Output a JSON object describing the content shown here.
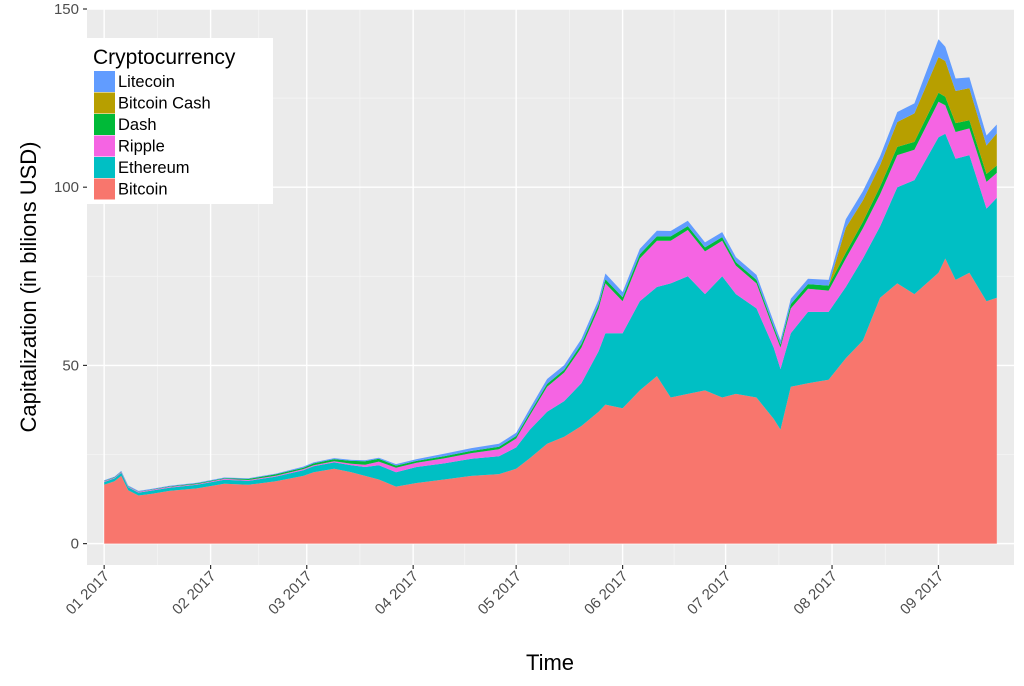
{
  "chart_data": {
    "type": "area",
    "stacked": true,
    "xlabel": "Time",
    "ylabel": "Capitalization (in bilions USD)",
    "ylim": [
      -6,
      150
    ],
    "y_ticks": [
      0,
      50,
      100,
      150
    ],
    "x_range": [
      "2016-12-27",
      "2017-09-23"
    ],
    "x_ticks": [
      {
        "date": "2017-01-01",
        "label": "01 2017"
      },
      {
        "date": "2017-02-01",
        "label": "02 2017"
      },
      {
        "date": "2017-03-01",
        "label": "03 2017"
      },
      {
        "date": "2017-04-01",
        "label": "04 2017"
      },
      {
        "date": "2017-05-01",
        "label": "05 2017"
      },
      {
        "date": "2017-06-01",
        "label": "06 2017"
      },
      {
        "date": "2017-07-01",
        "label": "07 2017"
      },
      {
        "date": "2017-08-01",
        "label": "08 2017"
      },
      {
        "date": "2017-09-01",
        "label": "09 2017"
      }
    ],
    "grid": true,
    "legend": {
      "title": "Cryptocurrency",
      "position": "top-left",
      "entries": [
        "Litecoin",
        "Bitcoin Cash",
        "Dash",
        "Ripple",
        "Ethereum",
        "Bitcoin"
      ]
    },
    "x": [
      "2017-01-01",
      "2017-01-04",
      "2017-01-06",
      "2017-01-08",
      "2017-01-11",
      "2017-01-15",
      "2017-01-20",
      "2017-01-28",
      "2017-02-05",
      "2017-02-12",
      "2017-02-20",
      "2017-02-28",
      "2017-03-03",
      "2017-03-09",
      "2017-03-14",
      "2017-03-18",
      "2017-03-22",
      "2017-03-27",
      "2017-04-02",
      "2017-04-10",
      "2017-04-18",
      "2017-04-26",
      "2017-05-01",
      "2017-05-05",
      "2017-05-10",
      "2017-05-15",
      "2017-05-20",
      "2017-05-25",
      "2017-05-27",
      "2017-06-01",
      "2017-06-06",
      "2017-06-11",
      "2017-06-15",
      "2017-06-20",
      "2017-06-25",
      "2017-06-30",
      "2017-07-04",
      "2017-07-10",
      "2017-07-15",
      "2017-07-17",
      "2017-07-20",
      "2017-07-25",
      "2017-07-31",
      "2017-08-05",
      "2017-08-10",
      "2017-08-15",
      "2017-08-20",
      "2017-08-25",
      "2017-09-01",
      "2017-09-03",
      "2017-09-06",
      "2017-09-10",
      "2017-09-15",
      "2017-09-18"
    ],
    "series": [
      {
        "name": "Bitcoin",
        "color": "#F8766D",
        "values": [
          16.5,
          17.5,
          19,
          15,
          13.5,
          14,
          14.8,
          15.5,
          16.8,
          16.5,
          17.5,
          19,
          20,
          21,
          20,
          19,
          18,
          16,
          17,
          18,
          19,
          19.5,
          21,
          24,
          28,
          30,
          33,
          37,
          39,
          38,
          43,
          47,
          41,
          42,
          43,
          41,
          42,
          41,
          35,
          32,
          44,
          45,
          46,
          52,
          57,
          69,
          73,
          70,
          76,
          80,
          74,
          76,
          68,
          69
        ]
      },
      {
        "name": "Ethereum",
        "color": "#00BFC4",
        "values": [
          0.8,
          0.8,
          0.9,
          0.8,
          0.8,
          0.9,
          0.9,
          1.0,
          1.1,
          1.1,
          1.3,
          1.6,
          1.7,
          1.8,
          2.0,
          2.5,
          4.0,
          4.0,
          4.5,
          4.5,
          4.8,
          5.0,
          6.0,
          8.0,
          9.0,
          10.0,
          12.0,
          17.0,
          20.0,
          21.0,
          25.0,
          25.0,
          32.0,
          33.0,
          27.0,
          34.0,
          28.0,
          25.0,
          20.0,
          17.0,
          15.0,
          20.0,
          19.0,
          20.0,
          23.0,
          20.0,
          27.0,
          32.0,
          38.0,
          35.0,
          34.0,
          33.0,
          26.0,
          28.0
        ]
      },
      {
        "name": "Ripple",
        "color": "#F564E3",
        "values": [
          0.2,
          0.2,
          0.2,
          0.2,
          0.2,
          0.2,
          0.2,
          0.2,
          0.25,
          0.25,
          0.25,
          0.3,
          0.3,
          0.3,
          0.4,
          0.6,
          1.0,
          1.3,
          1.2,
          1.4,
          1.6,
          2.0,
          2.5,
          4.0,
          7.0,
          8.0,
          10.0,
          12.0,
          14.0,
          9.0,
          12.0,
          13.0,
          12.0,
          13.0,
          12.0,
          10.0,
          8.0,
          7.0,
          5.0,
          6.0,
          7.0,
          6.5,
          6.0,
          8.0,
          8.5,
          9.0,
          9.0,
          8.5,
          10.0,
          8.0,
          7.5,
          7.5,
          7.5,
          7.0
        ]
      },
      {
        "name": "Dash",
        "color": "#00BA38",
        "values": [
          0.1,
          0.1,
          0.1,
          0.1,
          0.1,
          0.1,
          0.15,
          0.2,
          0.2,
          0.3,
          0.4,
          0.4,
          0.5,
          0.6,
          0.8,
          1.0,
          0.8,
          0.6,
          0.5,
          0.6,
          0.6,
          0.7,
          0.7,
          0.7,
          0.8,
          0.8,
          1.0,
          1.1,
          1.2,
          1.1,
          1.2,
          1.2,
          1.2,
          1.1,
          1.1,
          1.0,
          1.0,
          1.0,
          0.9,
          0.9,
          1.2,
          1.3,
          1.4,
          1.6,
          1.8,
          2.2,
          2.3,
          2.2,
          2.5,
          2.4,
          2.5,
          2.3,
          2.2,
          2.1
        ]
      },
      {
        "name": "Bitcoin Cash",
        "color": "#B79F00",
        "values": [
          0,
          0,
          0,
          0,
          0,
          0,
          0,
          0,
          0,
          0,
          0,
          0,
          0,
          0,
          0,
          0,
          0,
          0,
          0,
          0,
          0,
          0,
          0,
          0,
          0,
          0,
          0,
          0,
          0,
          0,
          0,
          0,
          0,
          0,
          0,
          0,
          0,
          0,
          0,
          0,
          0,
          0,
          0,
          7.0,
          6.0,
          6.0,
          7.0,
          8.0,
          10.0,
          10.0,
          9.0,
          9.0,
          8.0,
          9.0
        ]
      },
      {
        "name": "Litecoin",
        "color": "#619CFF",
        "values": [
          0.2,
          0.2,
          0.2,
          0.2,
          0.2,
          0.2,
          0.2,
          0.2,
          0.2,
          0.2,
          0.2,
          0.3,
          0.3,
          0.3,
          0.3,
          0.3,
          0.3,
          0.4,
          0.5,
          0.7,
          0.8,
          0.8,
          0.9,
          1.2,
          1.4,
          1.3,
          1.4,
          1.4,
          1.6,
          1.5,
          1.5,
          1.6,
          1.5,
          1.5,
          1.4,
          1.4,
          1.4,
          1.4,
          1.3,
          1.2,
          1.5,
          1.5,
          1.6,
          2.4,
          2.6,
          2.5,
          2.8,
          2.8,
          5.0,
          4.0,
          3.5,
          3.0,
          2.8,
          2.5
        ]
      }
    ]
  }
}
